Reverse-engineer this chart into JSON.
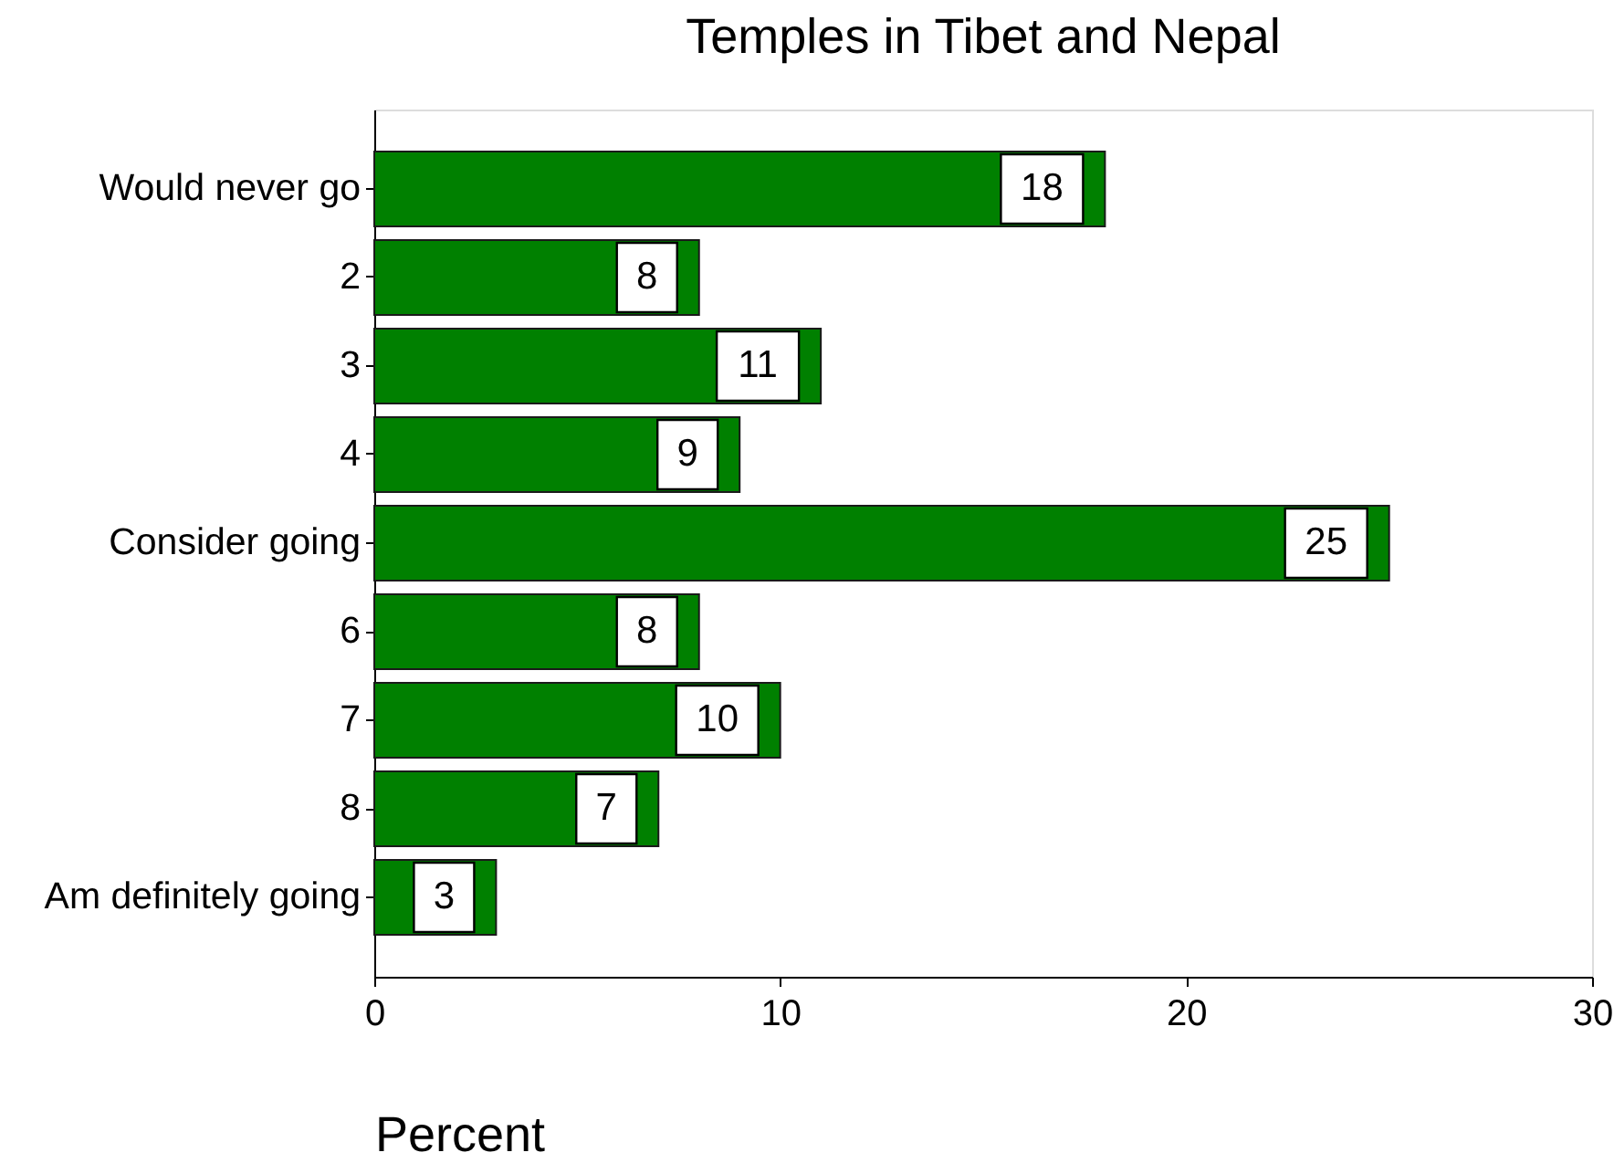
{
  "chart_data": {
    "type": "bar",
    "orientation": "horizontal",
    "title": "Temples in Tibet and Nepal",
    "xlabel": "Percent",
    "categories": [
      "Would never go",
      "2",
      "3",
      "4",
      "Consider going",
      "6",
      "7",
      "8",
      "Am definitely going"
    ],
    "values": [
      18,
      8,
      11,
      9,
      25,
      8,
      10,
      7,
      3
    ],
    "color": "#008000",
    "xlim": [
      0,
      30
    ],
    "xticks": [
      0,
      10,
      20,
      30
    ],
    "data_labels": true
  }
}
